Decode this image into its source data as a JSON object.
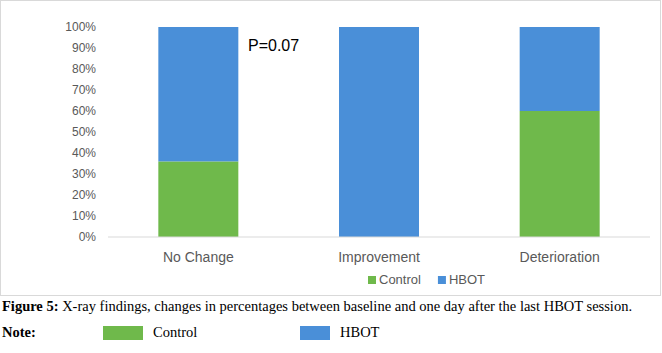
{
  "chart_data": {
    "type": "bar",
    "stacked": true,
    "grid": false,
    "legend": "bottom",
    "categories": [
      "No Change",
      "Improvement",
      "Deterioration"
    ],
    "series": [
      {
        "name": "Control",
        "color": "#6fb94b",
        "values": [
          36,
          0,
          60
        ]
      },
      {
        "name": "HBOT",
        "color": "#4a8fd8",
        "values": [
          64,
          100,
          40
        ]
      }
    ],
    "ylim": [
      0,
      100
    ],
    "yticks": [
      {
        "value": 0,
        "label": "0%"
      },
      {
        "value": 10,
        "label": "10%"
      },
      {
        "value": 20,
        "label": "20%"
      },
      {
        "value": 30,
        "label": "30%"
      },
      {
        "value": 40,
        "label": "40%"
      },
      {
        "value": 50,
        "label": "50%"
      },
      {
        "value": 60,
        "label": "60%"
      },
      {
        "value": 70,
        "label": "70%"
      },
      {
        "value": 80,
        "label": "80%"
      },
      {
        "value": 90,
        "label": "90%"
      },
      {
        "value": 100,
        "label": "100%"
      }
    ],
    "annotations": [
      "P=0.07"
    ],
    "caption": {
      "label": "Figure 5:",
      "text": "X-ray findings, changes in percentages between baseline and one day after the last HBOT session."
    },
    "note_label": "Note:"
  }
}
